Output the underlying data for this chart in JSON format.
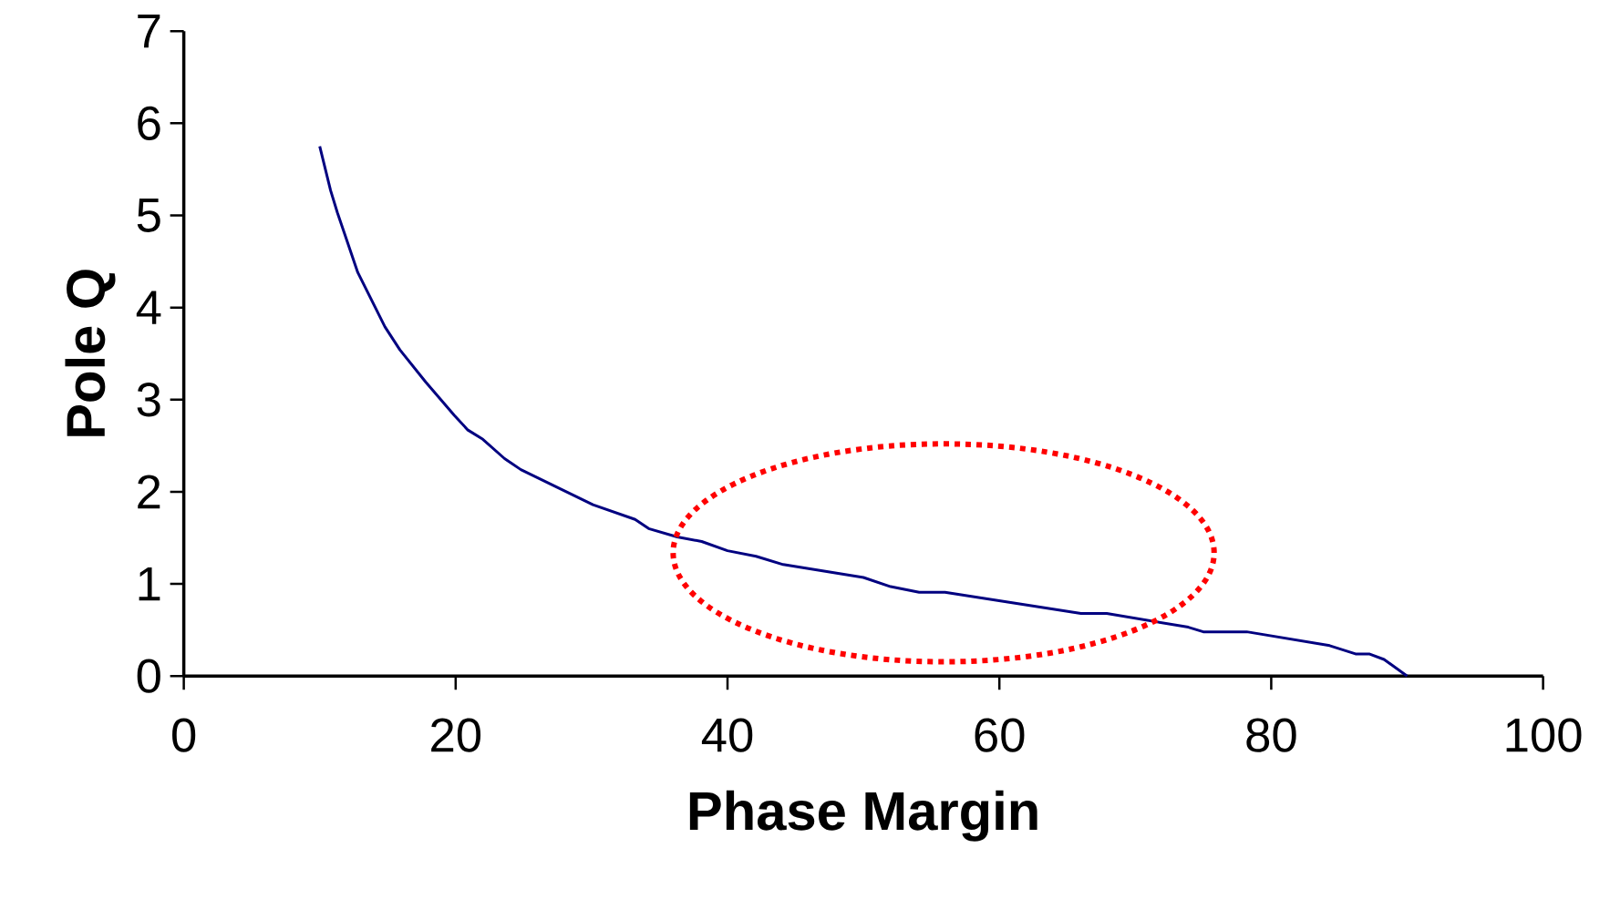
{
  "chart_data": {
    "type": "line",
    "xlabel": "Phase Margin",
    "ylabel": "Pole Q",
    "x": [
      10,
      10.8,
      11.3,
      12.8,
      14.8,
      15.9,
      17.8,
      19.9,
      20.9,
      22,
      23.6,
      24.8,
      30.1,
      33.2,
      34.2,
      36.3,
      38.1,
      40,
      42.1,
      44.1,
      50,
      52,
      54.1,
      56,
      66,
      67.9,
      73.9,
      75,
      78.2,
      84.3,
      86.2,
      87.2,
      88.3,
      90
    ],
    "values": [
      5.75,
      5.27,
      5.03,
      4.38,
      3.79,
      3.54,
      3.19,
      2.83,
      2.67,
      2.57,
      2.36,
      2.24,
      1.86,
      1.7,
      1.6,
      1.51,
      1.46,
      1.36,
      1.3,
      1.21,
      1.07,
      0.97,
      0.91,
      0.91,
      0.68,
      0.68,
      0.53,
      0.48,
      0.48,
      0.33,
      0.24,
      0.24,
      0.18,
      0
    ],
    "color": "#000080",
    "marker": "none",
    "line_style": "solid",
    "xlim": [
      0,
      100
    ],
    "ylim": [
      0,
      7
    ],
    "xticks": [
      0,
      20,
      40,
      60,
      80,
      100
    ],
    "yticks": [
      0,
      1,
      2,
      3,
      4,
      5,
      6,
      7
    ]
  }
}
